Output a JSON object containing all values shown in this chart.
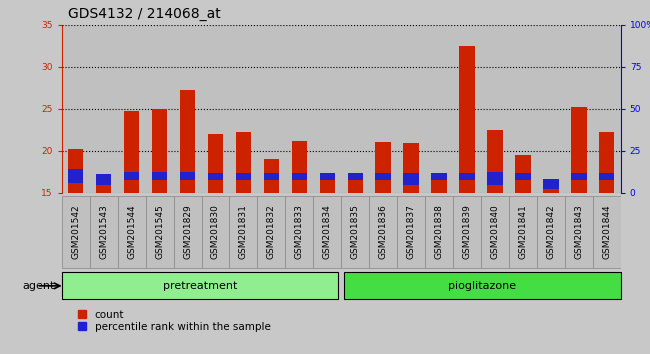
{
  "title": "GDS4132 / 214068_at",
  "samples": [
    "GSM201542",
    "GSM201543",
    "GSM201544",
    "GSM201545",
    "GSM201829",
    "GSM201830",
    "GSM201831",
    "GSM201832",
    "GSM201833",
    "GSM201834",
    "GSM201835",
    "GSM201836",
    "GSM201837",
    "GSM201838",
    "GSM201839",
    "GSM201840",
    "GSM201841",
    "GSM201842",
    "GSM201843",
    "GSM201844"
  ],
  "count_values": [
    20.2,
    17.0,
    24.8,
    25.0,
    27.2,
    22.0,
    22.3,
    19.0,
    21.2,
    17.0,
    17.2,
    21.0,
    20.9,
    17.3,
    32.5,
    22.5,
    19.5,
    16.3,
    25.2,
    22.2
  ],
  "percentile_values": [
    1.6,
    1.2,
    1.0,
    1.0,
    1.0,
    0.9,
    0.9,
    0.9,
    0.9,
    0.9,
    0.9,
    0.9,
    1.4,
    0.9,
    0.9,
    1.5,
    0.9,
    1.2,
    0.9,
    0.9
  ],
  "percentile_bottoms": [
    16.2,
    16.0,
    16.5,
    16.5,
    16.5,
    16.5,
    16.5,
    16.5,
    16.5,
    16.5,
    16.5,
    16.5,
    16.0,
    16.5,
    16.5,
    16.0,
    16.5,
    15.5,
    16.5,
    16.5
  ],
  "bar_base": 15.0,
  "ylim": [
    15,
    35
  ],
  "yticks": [
    15,
    20,
    25,
    30,
    35
  ],
  "y2lim": [
    0,
    100
  ],
  "y2ticks": [
    0,
    25,
    50,
    75,
    100
  ],
  "y2labels": [
    "0",
    "25",
    "50",
    "75",
    "100%"
  ],
  "count_color": "#cc2200",
  "percentile_color": "#2222cc",
  "bar_width": 0.55,
  "group_labels": [
    "pretreatment",
    "pioglitazone"
  ],
  "num_pretreatment": 10,
  "group_color_pre": "#90ee90",
  "group_color_pio": "#44dd44",
  "agent_label": "agent",
  "legend_count": "count",
  "legend_percentile": "percentile rank within the sample",
  "background_color": "#c8c8c8",
  "col_bg_color": "#c0c0c0",
  "plot_bg_color": "#ffffff",
  "title_fontsize": 10,
  "tick_fontsize": 6.5,
  "label_fontsize": 8
}
